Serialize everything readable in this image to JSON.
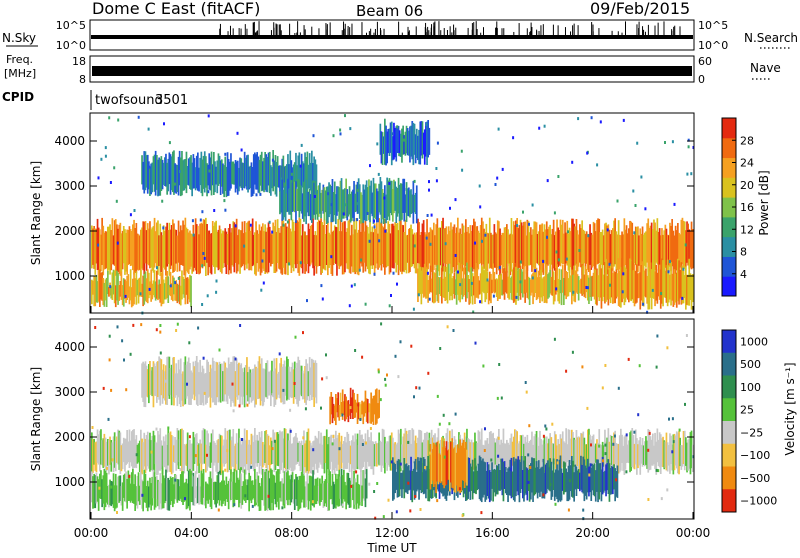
{
  "header": {
    "station": "Dome C East (fitACF)",
    "beam": "Beam 06",
    "date": "09/Feb/2015"
  },
  "sky_panel": {
    "left_label": "N.Sky",
    "left_ticks": [
      "10^5",
      "10^0"
    ],
    "right_ticks": [
      "10^5",
      "10^0"
    ],
    "right_label": "N.Search"
  },
  "freq_panel": {
    "left_label_line1": "Freq.",
    "left_label_line2": "[MHz]",
    "left_ticks": [
      "18",
      "8"
    ],
    "right_ticks": [
      "60",
      "0"
    ],
    "right_label": "Nave"
  },
  "cpid": {
    "label": "CPID",
    "value": "twofsound",
    "id": "3501"
  },
  "chart_data": [
    {
      "type": "heatmap",
      "name": "power",
      "ylabel": "Slant Range [km]",
      "ylim": [
        200,
        4600
      ],
      "yticks": [
        1000,
        2000,
        3000,
        4000
      ],
      "xlim": [
        0,
        24
      ],
      "colorbar_label": "Power [dB]",
      "colorbar_ticks": [
        4,
        8,
        12,
        16,
        20,
        24,
        28
      ],
      "colorbar_range": [
        0,
        32
      ],
      "colors": [
        "#1a1aff",
        "#1f55d6",
        "#2a8fa3",
        "#3aa36b",
        "#7fc24a",
        "#d9c21f",
        "#f5a020",
        "#f06a10",
        "#e42a10"
      ],
      "bands": [
        {
          "t0": 0,
          "t1": 24,
          "r0": 1150,
          "r1": 2100,
          "level": 26
        },
        {
          "t0": 0,
          "t1": 4,
          "r0": 450,
          "r1": 950,
          "level": 22
        },
        {
          "t0": 2,
          "t1": 9,
          "r0": 2900,
          "r1": 3600,
          "level": 8
        },
        {
          "t0": 7.5,
          "t1": 13,
          "r0": 2300,
          "r1": 3000,
          "level": 10
        },
        {
          "t0": 13,
          "t1": 20,
          "r0": 500,
          "r1": 1100,
          "level": 22
        },
        {
          "t0": 20,
          "t1": 24,
          "r0": 400,
          "r1": 1200,
          "level": 24
        },
        {
          "t0": 11.5,
          "t1": 13.5,
          "r0": 3600,
          "r1": 4300,
          "level": 6
        }
      ]
    },
    {
      "type": "heatmap",
      "name": "velocity",
      "ylabel": "Slant Range [km]",
      "ylim": [
        200,
        4600
      ],
      "yticks": [
        1000,
        2000,
        3000,
        4000
      ],
      "xlim": [
        0,
        24
      ],
      "xticks": [
        "00:00",
        "04:00",
        "08:00",
        "12:00",
        "16:00",
        "20:00",
        "00:00"
      ],
      "xlabel": "Time UT",
      "colorbar_label": "Velocity [m s⁻¹]",
      "colorbar_ticks": [
        "1000",
        "500",
        "100",
        "25",
        "−25",
        "−100",
        "−500",
        "−1000"
      ],
      "colors": [
        "#2233cc",
        "#2a6f8a",
        "#2f8f4f",
        "#55c23a",
        "#c8c8c8",
        "#f2c040",
        "#f08a10",
        "#e22a10"
      ],
      "bands": [
        {
          "t0": 0,
          "t1": 24,
          "r0": 1300,
          "r1": 2000,
          "level": 25
        },
        {
          "t0": 0,
          "t1": 11,
          "r0": 500,
          "r1": 1100,
          "level": 100
        },
        {
          "t0": 12,
          "t1": 21,
          "r0": 700,
          "r1": 1400,
          "level": 500
        },
        {
          "t0": 13.5,
          "t1": 15,
          "r0": 900,
          "r1": 1800,
          "level": -500
        },
        {
          "t0": 9.5,
          "t1": 11.5,
          "r0": 2400,
          "r1": 2900,
          "level": -500
        },
        {
          "t0": 2,
          "t1": 9,
          "r0": 2800,
          "r1": 3600,
          "level": 25
        }
      ]
    }
  ]
}
